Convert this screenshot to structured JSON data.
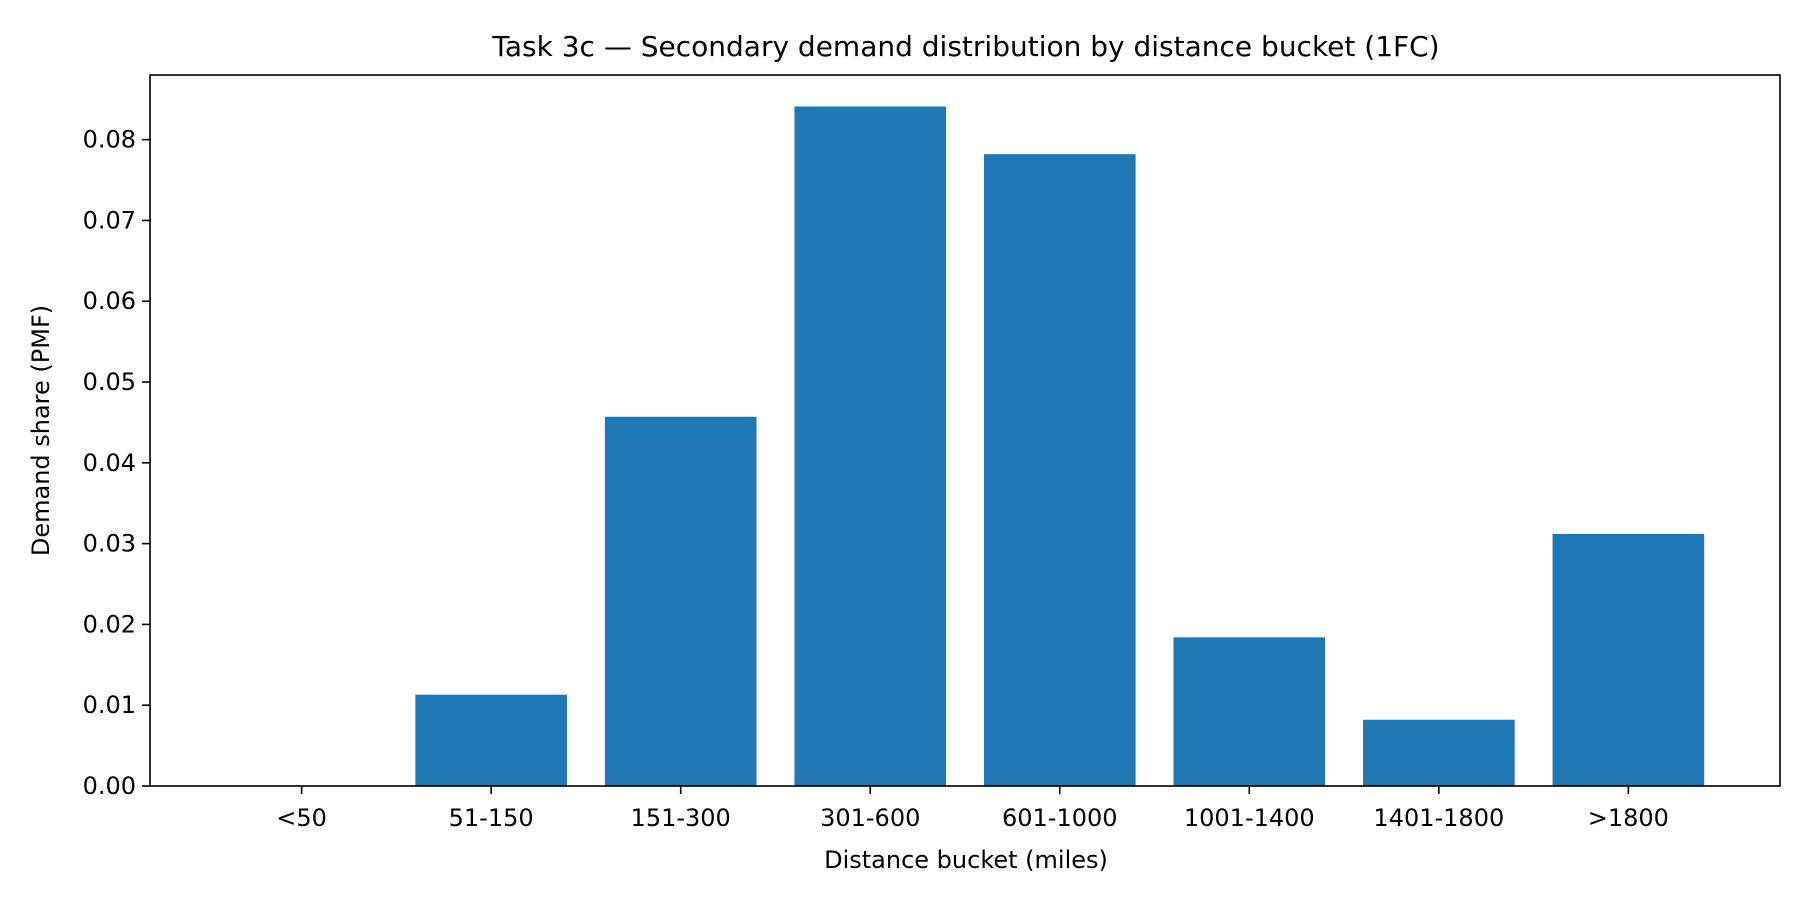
{
  "chart_data": {
    "type": "bar",
    "title": "Task 3c — Secondary demand distribution by distance bucket (1FC)",
    "xlabel": "Distance bucket (miles)",
    "ylabel": "Demand share (PMF)",
    "categories": [
      "<50",
      "51-150",
      "151-300",
      "301-600",
      "601-1000",
      "1001-1400",
      "1401-1800",
      ">1800"
    ],
    "values": [
      0.0,
      0.0113,
      0.0457,
      0.0841,
      0.0782,
      0.0184,
      0.0082,
      0.0312
    ],
    "ylim": [
      0,
      0.088
    ],
    "yticks": [
      "0.00",
      "0.01",
      "0.02",
      "0.03",
      "0.04",
      "0.05",
      "0.06",
      "0.07",
      "0.08"
    ],
    "grid": false,
    "legend": "none",
    "bar_color": "#1f77b4"
  }
}
